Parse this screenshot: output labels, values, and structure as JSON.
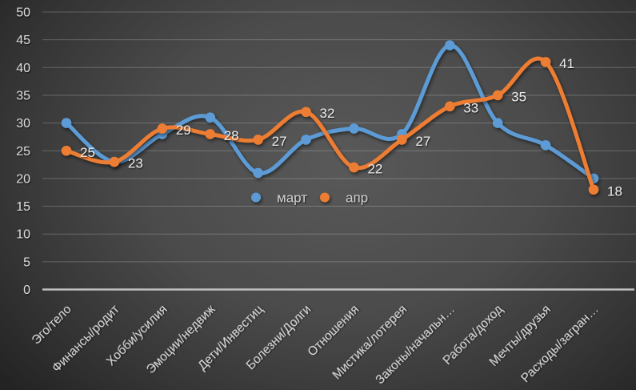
{
  "chart_data": {
    "type": "line",
    "title": "",
    "categories": [
      "Эго/тело",
      "Финансы/родит",
      "Хобби/усилия",
      "Эмоции/недвиж",
      "Дети/Инвестиц",
      "Болезни/Долги",
      "Отношения",
      "Мистика/лотерея",
      "Законы/начальн…",
      "Работа/доход",
      "Мечты/друзья",
      "Расходы/загран…"
    ],
    "series": [
      {
        "name": "март",
        "color": "#5B9BD5",
        "values": [
          30,
          23,
          28,
          31,
          21,
          27,
          29,
          28,
          44,
          30,
          26,
          20
        ],
        "data_labels": false
      },
      {
        "name": "апр",
        "color": "#ED7D31",
        "values": [
          25,
          23,
          29,
          28,
          27,
          32,
          22,
          27,
          33,
          35,
          41,
          18
        ],
        "data_labels": true
      }
    ],
    "ylim": [
      0,
      50
    ],
    "ytick_step": 5,
    "yticks": [
      "0",
      "5",
      "10",
      "15",
      "20",
      "25",
      "30",
      "35",
      "40",
      "45",
      "50"
    ],
    "grid": "horizontal",
    "smooth_lines": true,
    "marker": "circle",
    "legend_position": "inside-center",
    "legend_items": [
      "март",
      "апр"
    ],
    "colors": {
      "axis_text": "#d9d9d9",
      "gridline": "rgba(255,255,255,0.22)",
      "axis_line": "#bfbfbf",
      "data_label": "#e8e8e8",
      "legend_text": "#cccccc",
      "series_march": "#5B9BD5",
      "series_april": "#ED7D31"
    }
  }
}
